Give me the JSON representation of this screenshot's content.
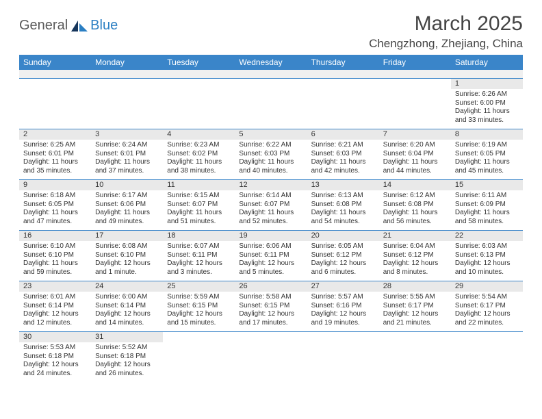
{
  "logo": {
    "part1": "General",
    "part2": "Blue"
  },
  "title": "March 2025",
  "location": "Chengzhong, Zhejiang, China",
  "headers": [
    "Sunday",
    "Monday",
    "Tuesday",
    "Wednesday",
    "Thursday",
    "Friday",
    "Saturday"
  ],
  "colors": {
    "header_bg": "#3a85c9",
    "header_text": "#ffffff",
    "daynum_bg": "#e9e9e9",
    "border": "#3a85c9",
    "logo_gray": "#5a5a5a",
    "logo_blue": "#2b7fc3"
  },
  "weeks": [
    [
      {
        "day": "",
        "sunrise": "",
        "sunset": "",
        "daylight": ""
      },
      {
        "day": "",
        "sunrise": "",
        "sunset": "",
        "daylight": ""
      },
      {
        "day": "",
        "sunrise": "",
        "sunset": "",
        "daylight": ""
      },
      {
        "day": "",
        "sunrise": "",
        "sunset": "",
        "daylight": ""
      },
      {
        "day": "",
        "sunrise": "",
        "sunset": "",
        "daylight": ""
      },
      {
        "day": "",
        "sunrise": "",
        "sunset": "",
        "daylight": ""
      },
      {
        "day": "1",
        "sunrise": "Sunrise: 6:26 AM",
        "sunset": "Sunset: 6:00 PM",
        "daylight": "Daylight: 11 hours and 33 minutes."
      }
    ],
    [
      {
        "day": "2",
        "sunrise": "Sunrise: 6:25 AM",
        "sunset": "Sunset: 6:01 PM",
        "daylight": "Daylight: 11 hours and 35 minutes."
      },
      {
        "day": "3",
        "sunrise": "Sunrise: 6:24 AM",
        "sunset": "Sunset: 6:01 PM",
        "daylight": "Daylight: 11 hours and 37 minutes."
      },
      {
        "day": "4",
        "sunrise": "Sunrise: 6:23 AM",
        "sunset": "Sunset: 6:02 PM",
        "daylight": "Daylight: 11 hours and 38 minutes."
      },
      {
        "day": "5",
        "sunrise": "Sunrise: 6:22 AM",
        "sunset": "Sunset: 6:03 PM",
        "daylight": "Daylight: 11 hours and 40 minutes."
      },
      {
        "day": "6",
        "sunrise": "Sunrise: 6:21 AM",
        "sunset": "Sunset: 6:03 PM",
        "daylight": "Daylight: 11 hours and 42 minutes."
      },
      {
        "day": "7",
        "sunrise": "Sunrise: 6:20 AM",
        "sunset": "Sunset: 6:04 PM",
        "daylight": "Daylight: 11 hours and 44 minutes."
      },
      {
        "day": "8",
        "sunrise": "Sunrise: 6:19 AM",
        "sunset": "Sunset: 6:05 PM",
        "daylight": "Daylight: 11 hours and 45 minutes."
      }
    ],
    [
      {
        "day": "9",
        "sunrise": "Sunrise: 6:18 AM",
        "sunset": "Sunset: 6:05 PM",
        "daylight": "Daylight: 11 hours and 47 minutes."
      },
      {
        "day": "10",
        "sunrise": "Sunrise: 6:17 AM",
        "sunset": "Sunset: 6:06 PM",
        "daylight": "Daylight: 11 hours and 49 minutes."
      },
      {
        "day": "11",
        "sunrise": "Sunrise: 6:15 AM",
        "sunset": "Sunset: 6:07 PM",
        "daylight": "Daylight: 11 hours and 51 minutes."
      },
      {
        "day": "12",
        "sunrise": "Sunrise: 6:14 AM",
        "sunset": "Sunset: 6:07 PM",
        "daylight": "Daylight: 11 hours and 52 minutes."
      },
      {
        "day": "13",
        "sunrise": "Sunrise: 6:13 AM",
        "sunset": "Sunset: 6:08 PM",
        "daylight": "Daylight: 11 hours and 54 minutes."
      },
      {
        "day": "14",
        "sunrise": "Sunrise: 6:12 AM",
        "sunset": "Sunset: 6:08 PM",
        "daylight": "Daylight: 11 hours and 56 minutes."
      },
      {
        "day": "15",
        "sunrise": "Sunrise: 6:11 AM",
        "sunset": "Sunset: 6:09 PM",
        "daylight": "Daylight: 11 hours and 58 minutes."
      }
    ],
    [
      {
        "day": "16",
        "sunrise": "Sunrise: 6:10 AM",
        "sunset": "Sunset: 6:10 PM",
        "daylight": "Daylight: 11 hours and 59 minutes."
      },
      {
        "day": "17",
        "sunrise": "Sunrise: 6:08 AM",
        "sunset": "Sunset: 6:10 PM",
        "daylight": "Daylight: 12 hours and 1 minute."
      },
      {
        "day": "18",
        "sunrise": "Sunrise: 6:07 AM",
        "sunset": "Sunset: 6:11 PM",
        "daylight": "Daylight: 12 hours and 3 minutes."
      },
      {
        "day": "19",
        "sunrise": "Sunrise: 6:06 AM",
        "sunset": "Sunset: 6:11 PM",
        "daylight": "Daylight: 12 hours and 5 minutes."
      },
      {
        "day": "20",
        "sunrise": "Sunrise: 6:05 AM",
        "sunset": "Sunset: 6:12 PM",
        "daylight": "Daylight: 12 hours and 6 minutes."
      },
      {
        "day": "21",
        "sunrise": "Sunrise: 6:04 AM",
        "sunset": "Sunset: 6:12 PM",
        "daylight": "Daylight: 12 hours and 8 minutes."
      },
      {
        "day": "22",
        "sunrise": "Sunrise: 6:03 AM",
        "sunset": "Sunset: 6:13 PM",
        "daylight": "Daylight: 12 hours and 10 minutes."
      }
    ],
    [
      {
        "day": "23",
        "sunrise": "Sunrise: 6:01 AM",
        "sunset": "Sunset: 6:14 PM",
        "daylight": "Daylight: 12 hours and 12 minutes."
      },
      {
        "day": "24",
        "sunrise": "Sunrise: 6:00 AM",
        "sunset": "Sunset: 6:14 PM",
        "daylight": "Daylight: 12 hours and 14 minutes."
      },
      {
        "day": "25",
        "sunrise": "Sunrise: 5:59 AM",
        "sunset": "Sunset: 6:15 PM",
        "daylight": "Daylight: 12 hours and 15 minutes."
      },
      {
        "day": "26",
        "sunrise": "Sunrise: 5:58 AM",
        "sunset": "Sunset: 6:15 PM",
        "daylight": "Daylight: 12 hours and 17 minutes."
      },
      {
        "day": "27",
        "sunrise": "Sunrise: 5:57 AM",
        "sunset": "Sunset: 6:16 PM",
        "daylight": "Daylight: 12 hours and 19 minutes."
      },
      {
        "day": "28",
        "sunrise": "Sunrise: 5:55 AM",
        "sunset": "Sunset: 6:17 PM",
        "daylight": "Daylight: 12 hours and 21 minutes."
      },
      {
        "day": "29",
        "sunrise": "Sunrise: 5:54 AM",
        "sunset": "Sunset: 6:17 PM",
        "daylight": "Daylight: 12 hours and 22 minutes."
      }
    ],
    [
      {
        "day": "30",
        "sunrise": "Sunrise: 5:53 AM",
        "sunset": "Sunset: 6:18 PM",
        "daylight": "Daylight: 12 hours and 24 minutes."
      },
      {
        "day": "31",
        "sunrise": "Sunrise: 5:52 AM",
        "sunset": "Sunset: 6:18 PM",
        "daylight": "Daylight: 12 hours and 26 minutes."
      },
      {
        "day": "",
        "sunrise": "",
        "sunset": "",
        "daylight": ""
      },
      {
        "day": "",
        "sunrise": "",
        "sunset": "",
        "daylight": ""
      },
      {
        "day": "",
        "sunrise": "",
        "sunset": "",
        "daylight": ""
      },
      {
        "day": "",
        "sunrise": "",
        "sunset": "",
        "daylight": ""
      },
      {
        "day": "",
        "sunrise": "",
        "sunset": "",
        "daylight": ""
      }
    ]
  ]
}
